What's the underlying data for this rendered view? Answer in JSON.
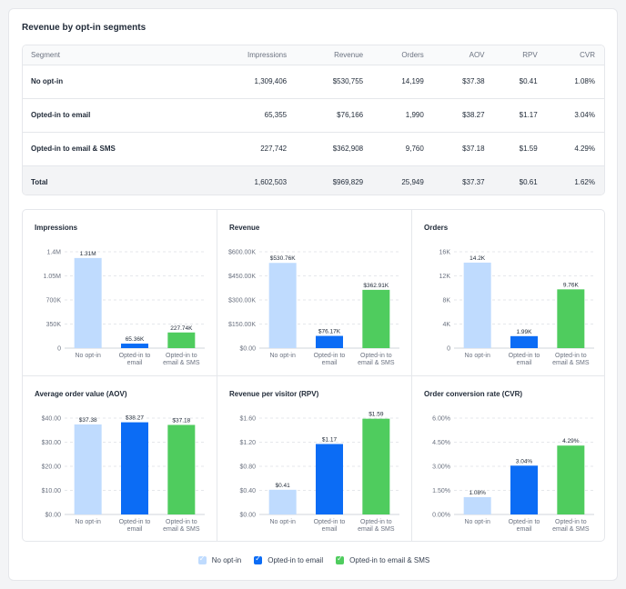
{
  "title": "Revenue by opt-in segments",
  "table": {
    "headers": [
      "Segment",
      "Impressions",
      "Revenue",
      "Orders",
      "AOV",
      "RPV",
      "CVR"
    ],
    "rows": [
      [
        "No opt-in",
        "1,309,406",
        "$530,755",
        "14,199",
        "$37.38",
        "$0.41",
        "1.08%"
      ],
      [
        "Opted-in to email",
        "65,355",
        "$76,166",
        "1,990",
        "$38.27",
        "$1.17",
        "3.04%"
      ],
      [
        "Opted-in to email & SMS",
        "227,742",
        "$362,908",
        "9,760",
        "$37.18",
        "$1.59",
        "4.29%"
      ],
      [
        "Total",
        "1,602,503",
        "$969,829",
        "25,949",
        "$37.37",
        "$0.61",
        "1.62%"
      ]
    ]
  },
  "colors": [
    "#bfdbfe",
    "#0b6cf5",
    "#4fcc5e"
  ],
  "legend": [
    "No opt-in",
    "Opted-in to email",
    "Opted-in to email & SMS"
  ],
  "chart_data": [
    {
      "type": "bar",
      "title": "Impressions",
      "categories": [
        [
          "No opt-in"
        ],
        [
          "Opted-in to",
          "email"
        ],
        [
          "Opted-in to",
          "email & SMS"
        ]
      ],
      "values": [
        1309406,
        65355,
        227742
      ],
      "data_labels": [
        "1.31M",
        "65.36K",
        "227.74K"
      ],
      "yticks": [
        0,
        350000,
        700000,
        1050000,
        1400000
      ],
      "ytick_labels": [
        "0",
        "350K",
        "700K",
        "1.05M",
        "1.4M"
      ],
      "ylim": [
        0,
        1400000
      ]
    },
    {
      "type": "bar",
      "title": "Revenue",
      "categories": [
        [
          "No opt-in"
        ],
        [
          "Opted-in to",
          "email"
        ],
        [
          "Opted-in to",
          "email & SMS"
        ]
      ],
      "values": [
        530755,
        76166,
        362908
      ],
      "data_labels": [
        "$530.76K",
        "$76.17K",
        "$362.91K"
      ],
      "yticks": [
        0,
        150000,
        300000,
        450000,
        600000
      ],
      "ytick_labels": [
        "$0.00",
        "$150.00K",
        "$300.00K",
        "$450.00K",
        "$600.00K"
      ],
      "ylim": [
        0,
        600000
      ]
    },
    {
      "type": "bar",
      "title": "Orders",
      "categories": [
        [
          "No opt-in"
        ],
        [
          "Opted-in to",
          "email"
        ],
        [
          "Opted-in to",
          "email & SMS"
        ]
      ],
      "values": [
        14199,
        1990,
        9760
      ],
      "data_labels": [
        "14.2K",
        "1.99K",
        "9.76K"
      ],
      "yticks": [
        0,
        4000,
        8000,
        12000,
        16000
      ],
      "ytick_labels": [
        "0",
        "4K",
        "8K",
        "12K",
        "16K"
      ],
      "ylim": [
        0,
        16000
      ]
    },
    {
      "type": "bar",
      "title": "Average order value (AOV)",
      "categories": [
        [
          "No opt-in"
        ],
        [
          "Opted-in to",
          "email"
        ],
        [
          "Opted-in to",
          "email & SMS"
        ]
      ],
      "values": [
        37.38,
        38.27,
        37.18
      ],
      "data_labels": [
        "$37.38",
        "$38.27",
        "$37.18"
      ],
      "yticks": [
        0,
        10,
        20,
        30,
        40
      ],
      "ytick_labels": [
        "$0.00",
        "$10.00",
        "$20.00",
        "$30.00",
        "$40.00"
      ],
      "ylim": [
        0,
        40
      ]
    },
    {
      "type": "bar",
      "title": "Revenue per visitor (RPV)",
      "categories": [
        [
          "No opt-in"
        ],
        [
          "Opted-in to",
          "email"
        ],
        [
          "Opted-in to",
          "email & SMS"
        ]
      ],
      "values": [
        0.41,
        1.17,
        1.59
      ],
      "data_labels": [
        "$0.41",
        "$1.17",
        "$1.59"
      ],
      "yticks": [
        0,
        0.4,
        0.8,
        1.2,
        1.6
      ],
      "ytick_labels": [
        "$0.00",
        "$0.40",
        "$0.80",
        "$1.20",
        "$1.60"
      ],
      "ylim": [
        0,
        1.6
      ]
    },
    {
      "type": "bar",
      "title": "Order conversion rate (CVR)",
      "categories": [
        [
          "No opt-in"
        ],
        [
          "Opted-in to",
          "email"
        ],
        [
          "Opted-in to",
          "email & SMS"
        ]
      ],
      "values": [
        1.08,
        3.04,
        4.29
      ],
      "data_labels": [
        "1.08%",
        "3.04%",
        "4.29%"
      ],
      "yticks": [
        0,
        1.5,
        3,
        4.5,
        6
      ],
      "ytick_labels": [
        "0.00%",
        "1.50%",
        "3.00%",
        "4.50%",
        "6.00%"
      ],
      "ylim": [
        0,
        6
      ]
    }
  ]
}
